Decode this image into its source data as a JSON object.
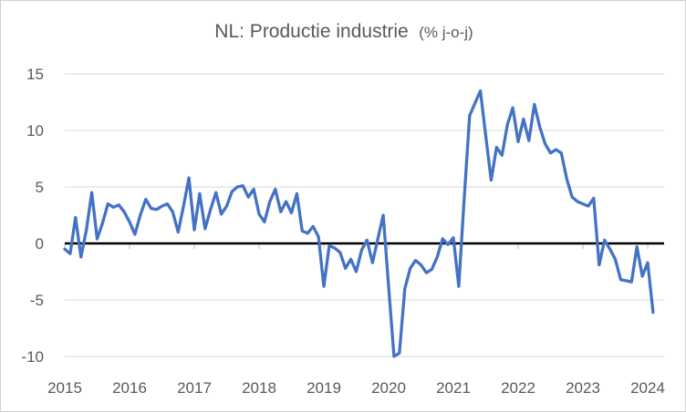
{
  "window": {
    "background": "#ffffff",
    "border_color": "#d0d0d0"
  },
  "chart_data": {
    "type": "line",
    "title": "NL: Productie industrie",
    "title_suffix": "(% j-o-j)",
    "text_color": "#595959",
    "gridline_color": "#d9d9d9",
    "zero_line_color": "#000000",
    "tick_color": "#bfbfbf",
    "grid": "horizontal",
    "legend": "none",
    "y_axis": {
      "tick_labels": [
        "15",
        "10",
        "5",
        "0",
        "-5",
        "-10"
      ],
      "tick_values": [
        15,
        10,
        5,
        0,
        -5,
        -10
      ],
      "min": -10,
      "max": 15
    },
    "x_axis": {
      "tick_labels": [
        "2015",
        "2016",
        "2017",
        "2018",
        "2019",
        "2020",
        "2021",
        "2022",
        "2023",
        "2024"
      ],
      "start": "2015-01",
      "end": "2024-02",
      "frequency": "monthly"
    },
    "series": [
      {
        "color": "#4472C4",
        "start": "2015-01",
        "frequency": "monthly",
        "values": [
          -0.5,
          -0.9,
          2.3,
          -1.2,
          1.2,
          4.5,
          0.4,
          1.8,
          3.5,
          3.2,
          3.4,
          2.8,
          1.9,
          0.8,
          2.5,
          3.9,
          3.1,
          3.0,
          3.3,
          3.5,
          2.8,
          1.0,
          3.3,
          5.8,
          1.2,
          4.4,
          1.3,
          3.0,
          4.5,
          2.6,
          3.3,
          4.6,
          5.0,
          5.1,
          4.1,
          4.8,
          2.6,
          1.9,
          3.7,
          4.8,
          2.8,
          3.7,
          2.7,
          4.4,
          1.1,
          0.9,
          1.5,
          0.6,
          -3.8,
          -0.2,
          -0.4,
          -0.8,
          -2.2,
          -1.4,
          -2.5,
          -0.6,
          0.3,
          -1.7,
          0.4,
          2.5,
          -3.8,
          -10.0,
          -9.7,
          -4.0,
          -2.2,
          -1.5,
          -1.9,
          -2.6,
          -2.3,
          -1.2,
          0.4,
          -0.1,
          0.5,
          -3.8,
          3.9,
          11.3,
          12.4,
          13.5,
          9.5,
          5.6,
          8.5,
          7.8,
          10.5,
          12.0,
          9.0,
          11.0,
          9.1,
          12.3,
          10.3,
          8.8,
          8.0,
          8.3,
          8.0,
          5.7,
          4.1,
          3.7,
          3.5,
          3.3,
          4.0,
          -1.9,
          0.3,
          -0.5,
          -1.4,
          -3.2,
          -3.3,
          -3.4,
          -0.3,
          -2.9,
          -1.7,
          -6.1
        ]
      }
    ]
  }
}
